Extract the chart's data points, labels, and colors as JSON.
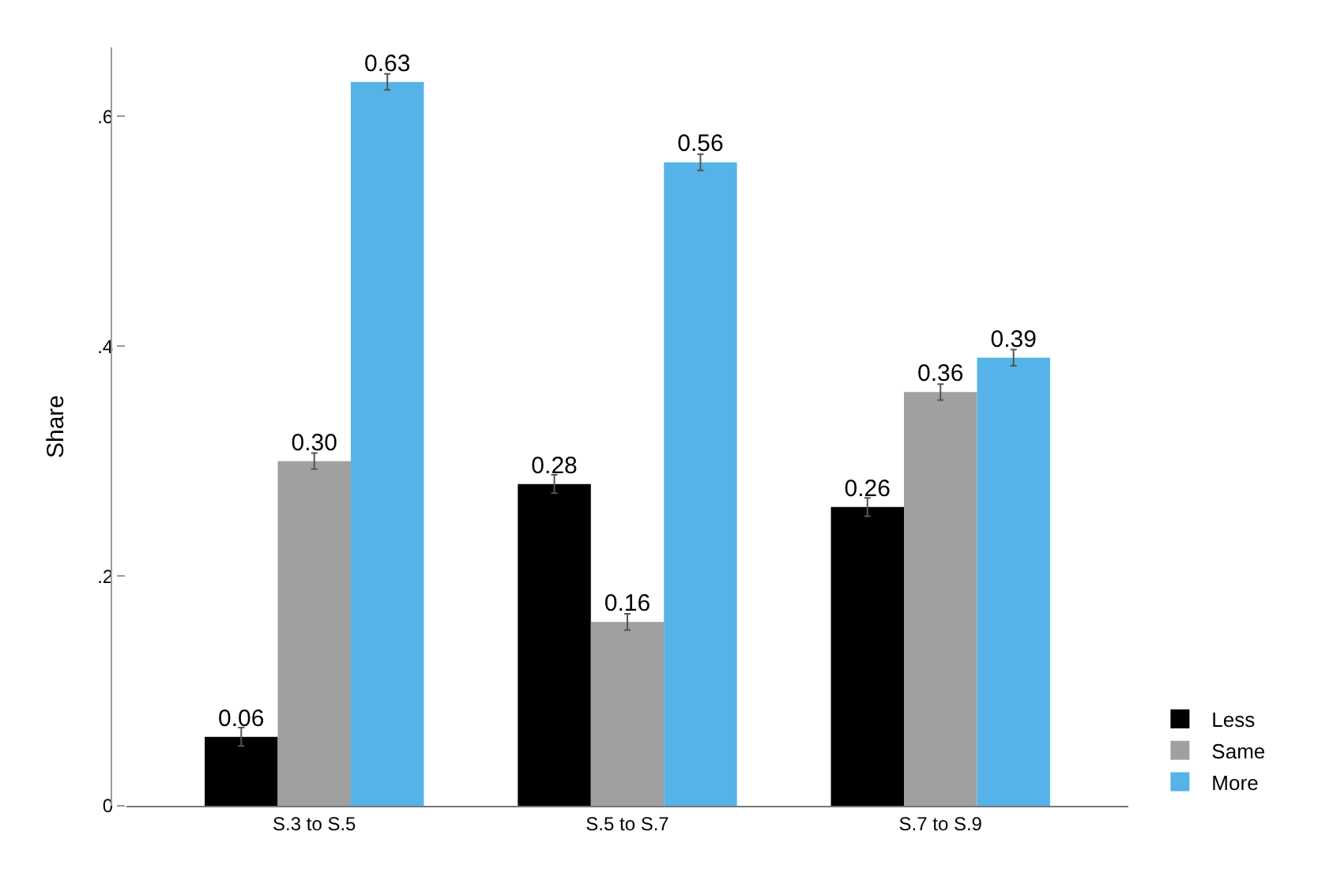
{
  "chart_data": {
    "type": "bar",
    "ylabel": "Share",
    "categories": [
      "S.3 to S.5",
      "S.5 to S.7",
      "S.7 to S.9"
    ],
    "series": [
      {
        "name": "Less",
        "color": "#000000",
        "values": [
          0.06,
          0.28,
          0.26
        ],
        "errors": [
          0.008,
          0.008,
          0.008
        ],
        "value_labels": [
          "0.06",
          "0.28",
          "0.26"
        ]
      },
      {
        "name": "Same",
        "color": "#a0a0a0",
        "values": [
          0.3,
          0.16,
          0.36
        ],
        "errors": [
          0.007,
          0.007,
          0.007
        ],
        "value_labels": [
          "0.30",
          "0.16",
          "0.36"
        ]
      },
      {
        "name": "More",
        "color": "#55b3e8",
        "values": [
          0.63,
          0.56,
          0.39
        ],
        "errors": [
          0.007,
          0.007,
          0.007
        ],
        "value_labels": [
          "0.63",
          "0.56",
          "0.39"
        ]
      }
    ],
    "ylim": [
      0,
      0.66
    ],
    "yticks": [
      {
        "value": 0,
        "label": "0"
      },
      {
        "value": 0.2,
        "label": ".2"
      },
      {
        "value": 0.4,
        "label": ".4"
      },
      {
        "value": 0.6,
        "label": ".6"
      }
    ],
    "grid": false,
    "legend": "bottom right"
  }
}
